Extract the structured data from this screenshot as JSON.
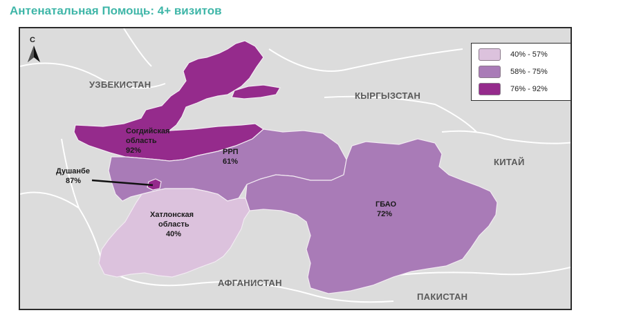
{
  "title": "Антенатальная Помощь: 4+ визитов",
  "north_label": "С",
  "countries": {
    "uzbekistan": "УЗБЕКИСТАН",
    "kyrgyzstan": "КЫРГЫЗСТАН",
    "china": "КИТАЙ",
    "afghanistan": "АФГАНИСТАН",
    "pakistan": "ПАКИСТАН"
  },
  "legend": [
    {
      "label": "40% - 57%",
      "color": "#dcc2dd"
    },
    {
      "label": "58% - 75%",
      "color": "#a97bb7"
    },
    {
      "label": "76% - 92%",
      "color": "#952b8c"
    }
  ],
  "regions": {
    "sogd": {
      "name_line1": "Согдийская",
      "name_line2": "область",
      "value": "92%",
      "color": "#952b8c"
    },
    "rrp": {
      "name": "РРП",
      "value": "61%",
      "color": "#a97bb7"
    },
    "dushanbe": {
      "name": "Душанбе",
      "value": "87%",
      "color": "#952b8c"
    },
    "gbao": {
      "name": "ГБАО",
      "value": "72%",
      "color": "#a97bb7"
    },
    "khatlon": {
      "name_line1": "Хатлонская",
      "name_line2": "область",
      "value": "40%",
      "color": "#dcc2dd"
    }
  }
}
